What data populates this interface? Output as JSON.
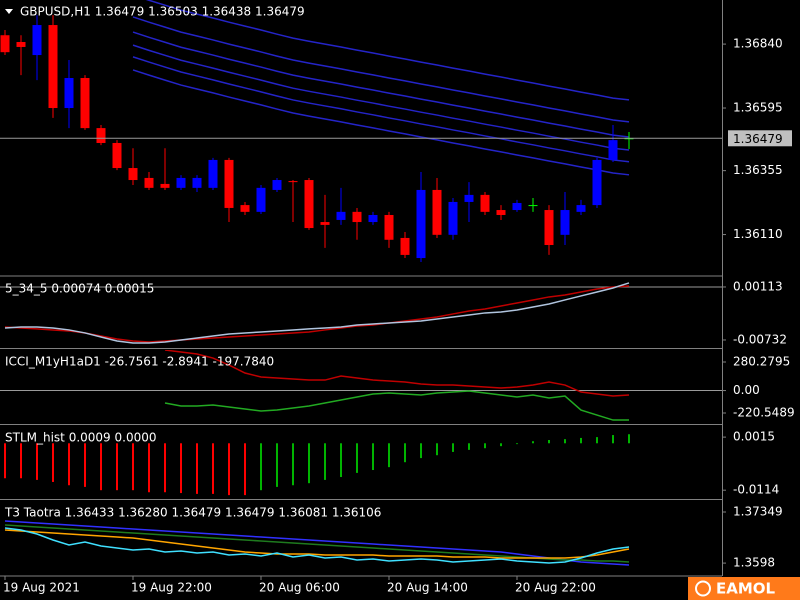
{
  "chart_data": [
    {
      "type": "candlestick",
      "title": "GBPUSD,H1  1.36479 1.36503 1.36438 1.36479",
      "logo": "EAMOL",
      "categories": [
        "19 Aug 2021",
        null,
        null,
        null,
        null,
        null,
        null,
        null,
        "19 Aug 22:00",
        null,
        null,
        null,
        null,
        null,
        null,
        null,
        "20 Aug 06:00",
        null,
        null,
        null,
        null,
        null,
        null,
        null,
        "20 Aug 14:00",
        null,
        null,
        null,
        null,
        null,
        null,
        null,
        "20 Aug 22:00",
        null,
        null,
        null,
        null,
        null,
        null,
        null
      ],
      "open": [
        1.36874,
        1.36848,
        1.36798,
        1.36913,
        1.36595,
        1.3671,
        1.36518,
        1.36461,
        1.36365,
        1.36327,
        1.36304,
        1.36289,
        1.36289,
        1.36289,
        1.36396,
        1.36223,
        1.36197,
        1.36281,
        1.36315,
        1.36319,
        1.36158,
        1.36166,
        1.36197,
        1.36158,
        1.36185,
        1.36097,
        1.3602,
        1.36281,
        1.36109,
        1.36235,
        1.36262,
        1.36204,
        1.36204,
        1.36223,
        1.36204,
        1.36109,
        1.36197,
        1.36223,
        1.36396,
        1.36479
      ],
      "high": [
        1.36894,
        1.36874,
        1.36951,
        1.36951,
        1.36779,
        1.36721,
        1.3653,
        1.36472,
        1.36441,
        1.3635,
        1.36441,
        1.36338,
        1.36338,
        1.36404,
        1.36404,
        1.36235,
        1.363,
        1.36327,
        1.36319,
        1.36327,
        1.36262,
        1.36289,
        1.36212,
        1.36197,
        1.36197,
        1.3612,
        1.3635,
        1.36327,
        1.3625,
        1.36311,
        1.36273,
        1.36223,
        1.36243,
        1.3625,
        1.36223,
        1.36273,
        1.36243,
        1.36404,
        1.3653,
        1.36503
      ],
      "low": [
        1.36798,
        1.36721,
        1.36702,
        1.36557,
        1.36518,
        1.36511,
        1.36453,
        1.36357,
        1.363,
        1.36281,
        1.36281,
        1.36281,
        1.36273,
        1.36281,
        1.36158,
        1.36185,
        1.36189,
        1.36273,
        1.36158,
        1.36128,
        1.36059,
        1.36147,
        1.3609,
        1.36147,
        1.36059,
        1.3602,
        1.36005,
        1.36097,
        1.3609,
        1.36158,
        1.36185,
        1.36166,
        1.36197,
        1.36197,
        1.36032,
        1.3607,
        1.36185,
        1.36212,
        1.36388,
        1.36438
      ],
      "close": [
        1.36809,
        1.36829,
        1.36913,
        1.36595,
        1.3671,
        1.36518,
        1.36461,
        1.36365,
        1.36319,
        1.36289,
        1.36289,
        1.36327,
        1.36327,
        1.36396,
        1.36212,
        1.36197,
        1.36289,
        1.36319,
        1.36311,
        1.36135,
        1.36147,
        1.36197,
        1.36158,
        1.36185,
        1.3609,
        1.36032,
        1.36281,
        1.36109,
        1.36235,
        1.36262,
        1.36197,
        1.36185,
        1.36231,
        1.36223,
        1.3607,
        1.36204,
        1.36223,
        1.36396,
        1.36472,
        1.36479
      ],
      "colors": {
        "up": "#0000ff",
        "down": "#ff0000",
        "doji": "#00ff00"
      },
      "lines": [
        {
          "color": "#2424c8",
          "values": [
            null,
            null,
            null,
            null,
            null,
            null,
            null,
            null,
            1.37028,
            1.37008,
            1.36989,
            1.3697,
            1.36955,
            1.3694,
            1.36924,
            1.36909,
            1.36894,
            1.36878,
            1.36863,
            1.36851,
            1.3684,
            1.36829,
            1.36817,
            1.36806,
            1.36794,
            1.36783,
            1.36771,
            1.3676,
            1.36748,
            1.36737,
            1.36725,
            1.36714,
            1.36702,
            1.36691,
            1.36679,
            1.36668,
            1.36656,
            1.36645,
            1.36633,
            1.36626
          ]
        },
        {
          "color": "#2424c8",
          "values": [
            null,
            null,
            null,
            null,
            null,
            null,
            null,
            null,
            1.36944,
            1.36924,
            1.36905,
            1.36886,
            1.36871,
            1.36856,
            1.3684,
            1.36825,
            1.3681,
            1.36794,
            1.36779,
            1.36767,
            1.36756,
            1.36745,
            1.36733,
            1.36722,
            1.3671,
            1.36699,
            1.36687,
            1.36676,
            1.36664,
            1.36653,
            1.36641,
            1.3663,
            1.36618,
            1.36607,
            1.36595,
            1.36584,
            1.36572,
            1.36561,
            1.36549,
            1.36542
          ]
        },
        {
          "color": "#2424c8",
          "values": [
            null,
            null,
            null,
            null,
            null,
            null,
            null,
            null,
            1.36886,
            1.36866,
            1.36847,
            1.36828,
            1.36813,
            1.36798,
            1.36782,
            1.36767,
            1.36752,
            1.36736,
            1.36721,
            1.36709,
            1.36698,
            1.36687,
            1.36675,
            1.36664,
            1.36652,
            1.36641,
            1.36629,
            1.36618,
            1.36606,
            1.36595,
            1.36583,
            1.36572,
            1.3656,
            1.36549,
            1.36537,
            1.36526,
            1.36514,
            1.36503,
            1.36491,
            1.36484
          ]
        },
        {
          "color": "#2424c8",
          "values": [
            null,
            null,
            null,
            null,
            null,
            null,
            null,
            null,
            1.36836,
            1.36816,
            1.36797,
            1.36778,
            1.36763,
            1.36748,
            1.36732,
            1.36717,
            1.36702,
            1.36686,
            1.36671,
            1.36659,
            1.36648,
            1.36637,
            1.36625,
            1.36614,
            1.36602,
            1.36591,
            1.36579,
            1.36568,
            1.36556,
            1.36545,
            1.36533,
            1.36522,
            1.3651,
            1.36499,
            1.36487,
            1.36476,
            1.36464,
            1.36453,
            1.36441,
            1.36434
          ]
        },
        {
          "color": "#2424c8",
          "values": [
            null,
            null,
            null,
            null,
            null,
            null,
            null,
            null,
            1.36791,
            1.36771,
            1.36752,
            1.36733,
            1.36718,
            1.36703,
            1.36687,
            1.36672,
            1.36657,
            1.36641,
            1.36626,
            1.36614,
            1.36603,
            1.36592,
            1.3658,
            1.36569,
            1.36557,
            1.36546,
            1.36534,
            1.36523,
            1.36511,
            1.365,
            1.36488,
            1.36477,
            1.36465,
            1.36454,
            1.36442,
            1.36431,
            1.36419,
            1.36408,
            1.36396,
            1.36389
          ]
        },
        {
          "color": "#2424c8",
          "values": [
            null,
            null,
            null,
            null,
            null,
            null,
            null,
            null,
            1.36741,
            1.36721,
            1.36702,
            1.36683,
            1.36668,
            1.36653,
            1.36637,
            1.36622,
            1.36607,
            1.36591,
            1.36576,
            1.36564,
            1.36553,
            1.36542,
            1.3653,
            1.36519,
            1.36507,
            1.36496,
            1.36484,
            1.36473,
            1.36461,
            1.3645,
            1.36438,
            1.36427,
            1.36415,
            1.36404,
            1.36392,
            1.36381,
            1.36369,
            1.36358,
            1.36346,
            1.36339
          ]
        }
      ],
      "current_price": 1.36479,
      "ylim": [
        1.35955,
        1.37009
      ],
      "yticks": [
        {
          "value": 1.3684,
          "label": "1.36840"
        },
        1.36595,
        1.36355,
        {
          "value": 1.3611,
          "label": "1.36110"
        }
      ]
    },
    {
      "type": "line",
      "title": "5_34_5 0.00074 0.00015",
      "series": [
        {
          "color": "#c00000",
          "values": [
            -0.00525,
            -0.00541,
            -0.00556,
            -0.00572,
            -0.00588,
            -0.0062,
            -0.00668,
            -0.00716,
            -0.00748,
            -0.00764,
            -0.00748,
            -0.00732,
            -0.00716,
            -0.007,
            -0.00684,
            -0.00668,
            -0.00652,
            -0.00636,
            -0.0062,
            -0.00604,
            -0.00572,
            -0.00541,
            -0.00509,
            -0.00493,
            -0.00461,
            -0.00429,
            -0.00397,
            -0.00365,
            -0.00317,
            -0.0027,
            -0.00238,
            -0.0019,
            -0.00142,
            -0.00094,
            -0.00046,
            -0.00015,
            0.00033,
            0.00081,
            0.00113,
            0.00129
          ]
        },
        {
          "color": "#b0c4de",
          "values": [
            -0.00541,
            -0.00525,
            -0.00525,
            -0.00541,
            -0.00572,
            -0.0062,
            -0.00684,
            -0.00748,
            -0.0078,
            -0.0078,
            -0.00764,
            -0.00732,
            -0.007,
            -0.00668,
            -0.00636,
            -0.0062,
            -0.00604,
            -0.00588,
            -0.00572,
            -0.00556,
            -0.00541,
            -0.00525,
            -0.00493,
            -0.00477,
            -0.00461,
            -0.00445,
            -0.00429,
            -0.00397,
            -0.00365,
            -0.00333,
            -0.00301,
            -0.00286,
            -0.00254,
            -0.00206,
            -0.00158,
            -0.00094,
            -0.0003,
            0.00033,
            0.00097,
            0.00177
          ]
        }
      ],
      "level": 0.00113,
      "ylim": [
        -0.00844,
        0.00272
      ],
      "yticks": [
        0.00113,
        -0.00732
      ]
    },
    {
      "type": "line",
      "title": "ICCI_M1yH1aD1 -26.7561 -2.8941 -197.7840",
      "series": [
        {
          "color": "#c00000",
          "values": [
            null,
            null,
            null,
            null,
            null,
            null,
            null,
            null,
            null,
            null,
            397.7,
            378.1,
            358.4,
            319.2,
            250.4,
            171.9,
            132.6,
            122.8,
            112.9,
            103.1,
            103.1,
            142.4,
            122.8,
            103.1,
            93.3,
            83.5,
            63.8,
            54.0,
            54.0,
            44.2,
            34.4,
            24.6,
            34.4,
            54.0,
            83.5,
            54.0,
            -14.7,
            -34.4,
            -54.0,
            -44.2
          ]
        },
        {
          "color": "#22aa22",
          "values": [
            null,
            null,
            null,
            null,
            null,
            null,
            null,
            null,
            null,
            null,
            -122.8,
            -152.2,
            -152.2,
            -142.4,
            -162.0,
            -181.7,
            -201.3,
            -191.5,
            -171.9,
            -152.2,
            -122.8,
            -93.3,
            -63.8,
            -34.4,
            -24.6,
            -34.4,
            -44.2,
            -24.6,
            -14.7,
            -4.9,
            -24.6,
            -44.2,
            -63.8,
            -44.2,
            -73.7,
            -54.0,
            -191.5,
            -240.6,
            -289.7,
            -289.7
          ]
        }
      ],
      "level": 0,
      "ylim": [
        -318.7,
        398.1
      ],
      "yticks": [
        280.2795,
        {
          "value": 0,
          "label": "0.00"
        },
        -220.5489
      ]
    },
    {
      "type": "histogram",
      "title": "STLM_hist 0.0009 0.0000",
      "series": [
        {
          "color": "#ff0000",
          "values": [
            -0.0085,
            -0.0085,
            -0.0089,
            -0.0094,
            -0.0102,
            -0.0106,
            -0.0114,
            -0.0114,
            -0.0114,
            -0.0119,
            -0.0119,
            -0.0121,
            -0.0123,
            -0.0123,
            -0.0126,
            -0.0126,
            null,
            null,
            null,
            null,
            null,
            null,
            null,
            null,
            null,
            null,
            null,
            null,
            null,
            null,
            null,
            null,
            null,
            null,
            null,
            null,
            null,
            null,
            null,
            null
          ]
        },
        {
          "color": "#00b400",
          "values": [
            null,
            null,
            null,
            null,
            null,
            null,
            null,
            null,
            null,
            null,
            null,
            null,
            null,
            null,
            null,
            null,
            -0.0114,
            -0.0106,
            -0.0102,
            -0.0097,
            -0.0089,
            -0.0082,
            -0.0072,
            -0.0065,
            -0.0058,
            -0.0046,
            -0.0036,
            -0.0029,
            -0.0021,
            -0.0016,
            -0.0012,
            -0.0007,
            -0.0002,
            0.0005,
            0.0008,
            0.001,
            0.0013,
            0.0015,
            0.002,
            0.0022
          ]
        }
      ],
      "ylim": [
        -0.0133,
        0.0042
      ],
      "yticks": [
        0.0015,
        -0.0114
      ]
    },
    {
      "type": "line",
      "title": "T3 Taotra 1.36433 1.36280 1.36479 1.36479 1.36081 1.36106",
      "series": [
        {
          "color": "#3030ff",
          "values": [
            1.37108,
            1.37081,
            1.37054,
            1.37027,
            1.37001,
            1.36974,
            1.36947,
            1.3692,
            1.36893,
            1.36867,
            1.3684,
            1.36813,
            1.36786,
            1.36759,
            1.36733,
            1.36706,
            1.36679,
            1.36652,
            1.36625,
            1.36599,
            1.36572,
            1.36545,
            1.36518,
            1.36491,
            1.36465,
            1.36438,
            1.36411,
            1.36384,
            1.36357,
            1.36331,
            1.36304,
            1.36277,
            1.36223,
            1.3617,
            1.36116,
            1.36063,
            1.36009,
            1.35982,
            1.35955,
            1.35929
          ]
        },
        {
          "color": "#1e7a1e",
          "values": [
            1.37001,
            1.36974,
            1.36947,
            1.3692,
            1.36893,
            1.36867,
            1.3684,
            1.36813,
            1.36786,
            1.36759,
            1.36733,
            1.36706,
            1.36679,
            1.36652,
            1.36625,
            1.36599,
            1.36572,
            1.36545,
            1.36518,
            1.36491,
            1.36465,
            1.36438,
            1.36411,
            1.36384,
            1.36357,
            1.36331,
            1.36304,
            1.36277,
            1.3625,
            1.36223,
            1.36197,
            1.3617,
            1.36143,
            1.36116,
            1.36089,
            1.36063,
            1.36063,
            1.36036,
            1.36036,
            1.36009
          ]
        },
        {
          "color": "#ffa500",
          "values": [
            1.36867,
            1.3684,
            1.36813,
            1.36786,
            1.36759,
            1.36733,
            1.36706,
            1.36679,
            1.36652,
            1.36599,
            1.36545,
            1.36491,
            1.36438,
            1.36384,
            1.36331,
            1.36277,
            1.3625,
            1.36223,
            1.36223,
            1.36223,
            1.36197,
            1.36197,
            1.36197,
            1.36197,
            1.3617,
            1.3617,
            1.3617,
            1.3617,
            1.36143,
            1.36143,
            1.36143,
            1.36116,
            1.36116,
            1.36116,
            1.36116,
            1.36116,
            1.36143,
            1.36197,
            1.36277,
            1.36357
          ]
        },
        {
          "color": "#40e0ff",
          "values": [
            1.3692,
            1.36867,
            1.36759,
            1.36599,
            1.36465,
            1.36545,
            1.36438,
            1.36384,
            1.36331,
            1.36357,
            1.36277,
            1.36304,
            1.3625,
            1.36277,
            1.36197,
            1.36223,
            1.3617,
            1.3625,
            1.36143,
            1.36197,
            1.36116,
            1.36143,
            1.36063,
            1.36089,
            1.36036,
            1.36063,
            1.36089,
            1.36063,
            1.36009,
            1.36036,
            1.36063,
            1.36089,
            1.36036,
            1.36009,
            1.35982,
            1.36009,
            1.36116,
            1.3625,
            1.36357,
            1.36411
          ]
        }
      ],
      "ylim": [
        1.35661,
        1.37644
      ],
      "yticks": [
        1.37349,
        1.3598
      ]
    }
  ]
}
